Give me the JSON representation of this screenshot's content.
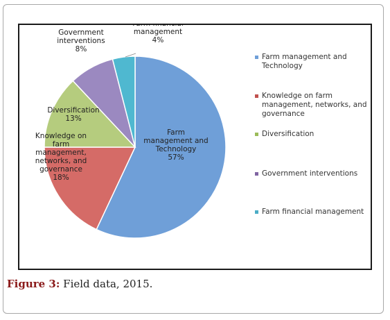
{
  "chart_data": {
    "type": "pie",
    "slices": [
      {
        "name": "Farm management and Technology",
        "value": 57,
        "label_lines": [
          "Farm",
          "management and",
          "Technology",
          "57%"
        ],
        "color": "#6f9fd8"
      },
      {
        "name": "Knowledge on farm management, networks, and governance",
        "value": 18,
        "label_lines": [
          "Knowledge on",
          "farm",
          "management,",
          "networks, and",
          "governance",
          "18%"
        ],
        "color": "#d56b67"
      },
      {
        "name": "Diversification",
        "value": 13,
        "label_lines": [
          "Diversification",
          "13%"
        ],
        "color": "#b5cc7e"
      },
      {
        "name": "Government interventions",
        "value": 8,
        "label_lines": [
          "Government",
          "interventions",
          "8%"
        ],
        "color": "#9b89c0"
      },
      {
        "name": "Farm financial management",
        "value": 4,
        "label_lines": [
          "Farm financial",
          "management",
          "4%"
        ],
        "color": "#4fb8d0"
      }
    ],
    "legend": [
      {
        "lines": [
          "Farm management and",
          "Technology"
        ],
        "color": "#6f9fd8"
      },
      {
        "lines": [
          "Knowledge on farm",
          "management, networks, and",
          "governance"
        ],
        "color": "#c0504d"
      },
      {
        "lines": [
          "Diversification"
        ],
        "color": "#9bbb59"
      },
      {
        "lines": [
          "Government interventions"
        ],
        "color": "#8064a2"
      },
      {
        "lines": [
          "Farm financial management"
        ],
        "color": "#4bacc6"
      }
    ],
    "legend_position": "right"
  },
  "caption": {
    "figure_label": "Figure 3:",
    "text": " Field data, 2015."
  }
}
